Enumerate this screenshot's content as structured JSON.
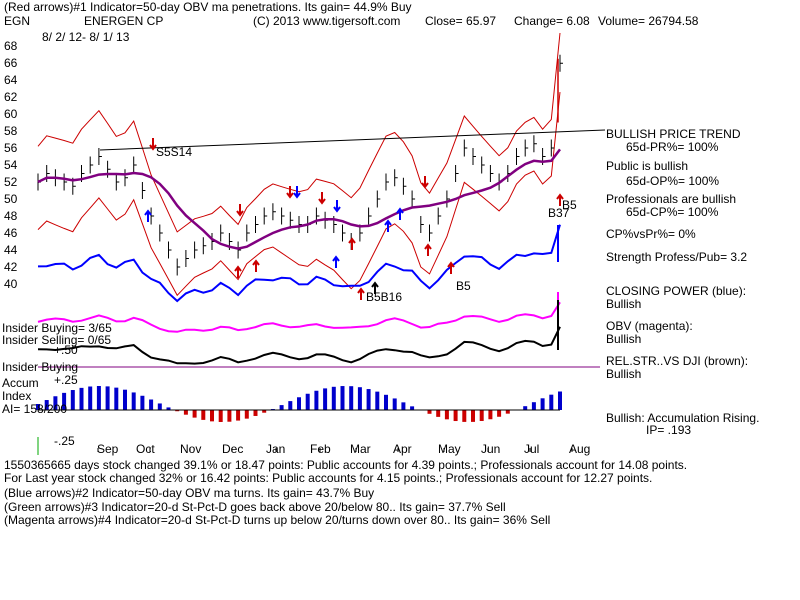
{
  "header": {
    "line1": "(Red arrows)#1 Indicator=50-day OBV ma penetrations. Its gain= 44.9% Buy",
    "ticker": "EGN",
    "company": "ENERGEN CP",
    "copyright": "(C) 2013 www.tigersoft.com",
    "close": "Close=  65.97",
    "change": "Change= 6.08",
    "volume": "Volume= 26794.58",
    "date_range": "8/ 2/ 12-  8/ 1/ 13"
  },
  "price_ticks": [
    "68",
    "66",
    "64",
    "62",
    "60",
    "58",
    "56",
    "54",
    "52",
    "50",
    "48",
    "46",
    "44",
    "42",
    "40"
  ],
  "lower_ticks": [
    "+.50",
    "+.25",
    "-.25"
  ],
  "panel_labels": {
    "insider_buying": "Insider Buying= 3/65",
    "insider_selling": "Insider Selling= 0/65",
    "insider_buying2": "Insider Buying",
    "accum": "Accum",
    "index": "Index",
    "ai": "AI= 158/200"
  },
  "chart_labels": {
    "s5s14": "S5S14",
    "b5_b37a": "B5",
    "b37": "B37",
    "b5b16": "B5B16",
    "b5_apr": "B5"
  },
  "right_panel": {
    "trend_title": "BULLISH PRICE TREND",
    "pr": "65d-PR%= 100%",
    "public": "Public is bullish",
    "op": "65d-OP%= 100%",
    "pros": "Professionals are bullish",
    "cp": "65d-CP%= 100%",
    "cpvspr": "CP%vsPr%=  0%",
    "strength": "Strength Profess/Pub= 3.2",
    "closing_power": "CLOSING POWER (blue):",
    "cp_status": "Bullish",
    "obv": "OBV (magenta):",
    "obv_status": "Bullish",
    "relstr": "REL.STR..VS DJI (brown):",
    "relstr_status": "Bullish",
    "accum_rising": "Bullish: Accumulation Rising.",
    "ip": "IP=  .193"
  },
  "months": [
    "Sep",
    "Oct",
    "Nov",
    "Dec",
    "Jan",
    "Feb",
    "Mar",
    "Apr",
    "May",
    "Jun",
    "Jul",
    "Aug"
  ],
  "footer": {
    "line1": "1550365665 days stock changed  39.1% or  18.47 points:  Public accounts for  4.39 points.;  Professionals account for  14.08 points.",
    "line2": "For Last year stock changed  32% or  16.42 points:  Public accounts for  4.15 points.;  Professionals account for  12.27 points.",
    "line3": "(Blue arrows)#2 Indicator=50-day OBV ma turns. Its gain= 43.7% Buy",
    "line4": "(Green arrows)#3 Indicator=20-d St-Pct-D goes back above 20/below 80.. Its gain= 37.7% Sell",
    "line5": "(Magenta arrows)#4 Indicator=20-d St-Pct-D turns up below 20/turns down over 80.. Its gain= 36% Sell"
  },
  "colors": {
    "price_bars": "#000000",
    "bands": "#cc0000",
    "ma": "#800080",
    "closing_power": "#0000ff",
    "obv": "#ff00ff",
    "rel_strength": "#000000",
    "accum_pos": "#0000cc",
    "accum_neg": "#cc0000",
    "grid": "#00aa00",
    "trendline": "#000000"
  },
  "chart_data": {
    "type": "line",
    "title": "ENERGEN CP",
    "ylim": [
      38,
      68
    ],
    "months": [
      "Sep",
      "Oct",
      "Nov",
      "Dec",
      "Jan",
      "Feb",
      "Mar",
      "Apr",
      "May",
      "Jun",
      "Jul",
      "Aug"
    ],
    "price_close": [
      52,
      53,
      52.5,
      52,
      51.5,
      53,
      54,
      55,
      53.5,
      52,
      52.5,
      54,
      51,
      48,
      46,
      44,
      42,
      43,
      44,
      44.5,
      45,
      46,
      45,
      44,
      46,
      47,
      48,
      48.5,
      48,
      47.5,
      47,
      47,
      48,
      47.5,
      47,
      46,
      45,
      46,
      48,
      50,
      52,
      52.5,
      51.5,
      50,
      47,
      46,
      48,
      50,
      53,
      56,
      55,
      54,
      53,
      52,
      53,
      55,
      56,
      56.5,
      55,
      56,
      65.97
    ]
  }
}
